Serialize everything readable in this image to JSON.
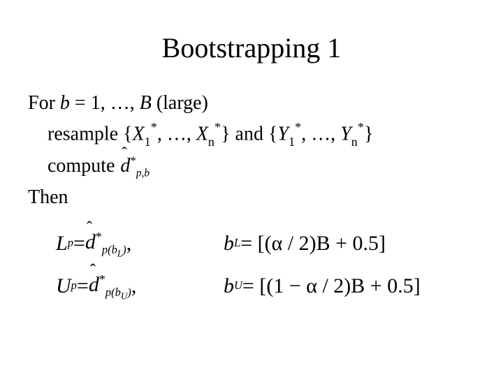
{
  "title": "Bootstrapping 1",
  "line1": {
    "prefix": "For ",
    "b": "b",
    "eq": " = 1, …, ",
    "B": "B",
    "suffix": " (large)"
  },
  "line2": {
    "prefix": "resample {",
    "X": "X",
    "sub1": "1",
    "star": "*",
    "mid1": ", …, ",
    "subn": "n",
    "mid2": "} and {",
    "Y": "Y",
    "end": "}"
  },
  "line3": {
    "prefix": "compute ",
    "d": "d",
    "sub": "p,b",
    "star": "*"
  },
  "line4": "Then",
  "formula": {
    "L": "L",
    "U": "U",
    "p": "p",
    "eq": " = ",
    "d": "d",
    "hat": "ˆ",
    "star": "*",
    "sub_pbL": "p(b",
    "subL": "L",
    "sub_pbU": "p(b",
    "subU": "U",
    "closeParen": ")",
    "comma": ",",
    "b": "b",
    "rightL": " = [(α / 2)B + 0.5]",
    "rightU": " = [(1 − α / 2)B + 0.5]"
  }
}
